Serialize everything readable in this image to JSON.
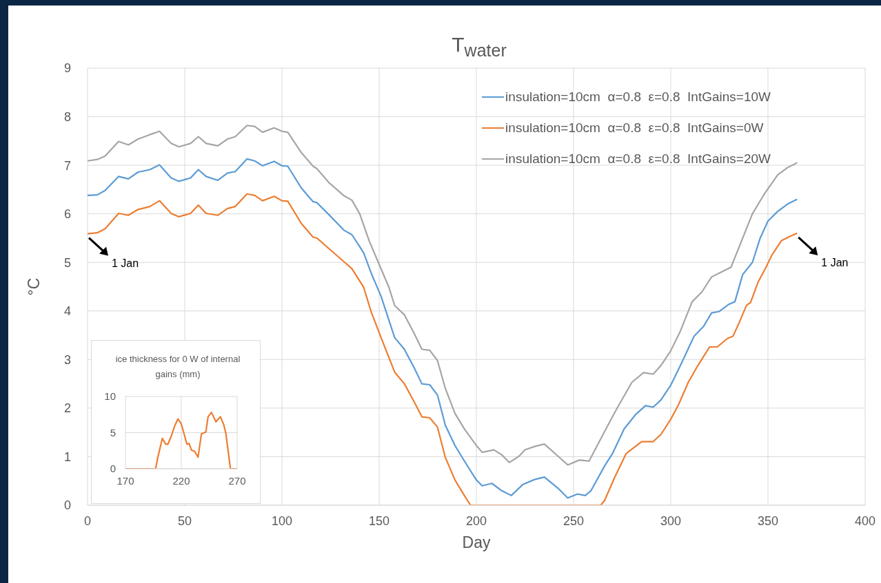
{
  "chart_data": [
    {
      "type": "line",
      "title": "T$_{water}$",
      "xlabel": "Day",
      "ylabel": "°C",
      "xlim": [
        0,
        400
      ],
      "xticks": [
        0,
        50,
        100,
        150,
        200,
        250,
        300,
        350,
        400
      ],
      "ylim": [
        0,
        9
      ],
      "yticks": [
        0,
        1,
        2,
        3,
        4,
        5,
        6,
        7,
        8,
        9
      ],
      "grid": true,
      "legend": "top right",
      "annotations": [
        {
          "text": "1 Jan",
          "x": 0,
          "y": 5.59
        },
        {
          "text": "1 Jan",
          "x": 365,
          "y": 5.6
        }
      ],
      "series": [
        {
          "name": "insulation=10cm  α=0.8  ε=0.8  IntGains=10W",
          "color": "#5b9bd5",
          "x": [
            0,
            5,
            9,
            16,
            21,
            26,
            32,
            37,
            43,
            47,
            53,
            57,
            61,
            67,
            72,
            76,
            82,
            86,
            90,
            96,
            100,
            103,
            110,
            116,
            118,
            124,
            132,
            136,
            142,
            146,
            151,
            158,
            163,
            168,
            172,
            176,
            180,
            184,
            189,
            194,
            200,
            203,
            208,
            213,
            218,
            224,
            230,
            235,
            242,
            247,
            252,
            256,
            259,
            266,
            270,
            276,
            282,
            287,
            291,
            295,
            300,
            305,
            312,
            317,
            321,
            325,
            330,
            333,
            337,
            342,
            346,
            350,
            355,
            360,
            365
          ],
          "values": [
            6.38,
            6.39,
            6.48,
            6.77,
            6.72,
            6.86,
            6.91,
            7.01,
            6.74,
            6.67,
            6.74,
            6.91,
            6.77,
            6.69,
            6.84,
            6.87,
            7.13,
            7.09,
            6.99,
            7.08,
            6.99,
            6.98,
            6.53,
            6.25,
            6.23,
            5.99,
            5.66,
            5.57,
            5.2,
            4.77,
            4.3,
            3.45,
            3.21,
            2.83,
            2.5,
            2.48,
            2.27,
            1.65,
            1.23,
            0.9,
            0.52,
            0.4,
            0.45,
            0.3,
            0.2,
            0.43,
            0.53,
            0.58,
            0.35,
            0.15,
            0.23,
            0.2,
            0.3,
            0.81,
            1.06,
            1.57,
            1.87,
            2.05,
            2.02,
            2.17,
            2.47,
            2.88,
            3.48,
            3.69,
            3.96,
            3.99,
            4.14,
            4.19,
            4.75,
            5.0,
            5.5,
            5.85,
            6.05,
            6.2,
            6.3
          ]
        },
        {
          "name": "insulation=10cm  α=0.8  ε=0.8  IntGains=0W",
          "color": "#ed7d31",
          "x": [
            0,
            5,
            9,
            16,
            21,
            26,
            32,
            37,
            43,
            47,
            53,
            57,
            61,
            67,
            72,
            76,
            82,
            86,
            90,
            96,
            100,
            103,
            110,
            116,
            118,
            124,
            132,
            136,
            142,
            146,
            151,
            158,
            163,
            168,
            172,
            176,
            180,
            184,
            189,
            194,
            197,
            264,
            266,
            271,
            277,
            285,
            291,
            295,
            300,
            304,
            309,
            314,
            320,
            324,
            329,
            332,
            335,
            339,
            341,
            345,
            349,
            352,
            357,
            362,
            365
          ],
          "values": [
            5.59,
            5.61,
            5.69,
            6.01,
            5.97,
            6.09,
            6.15,
            6.27,
            6.01,
            5.94,
            6.01,
            6.18,
            6.01,
            5.97,
            6.11,
            6.15,
            6.41,
            6.38,
            6.27,
            6.36,
            6.27,
            6.26,
            5.8,
            5.52,
            5.5,
            5.29,
            5.01,
            4.87,
            4.49,
            3.97,
            3.45,
            2.74,
            2.5,
            2.13,
            1.82,
            1.8,
            1.61,
            0.99,
            0.52,
            0.19,
            0,
            0,
            0.1,
            0.56,
            1.06,
            1.31,
            1.31,
            1.46,
            1.77,
            2.07,
            2.53,
            2.88,
            3.26,
            3.26,
            3.43,
            3.48,
            3.74,
            4.12,
            4.17,
            4.6,
            4.9,
            5.15,
            5.45,
            5.55,
            5.6
          ]
        },
        {
          "name": "insulation=10cm  α=0.8  ε=0.8  IntGains=20W",
          "color": "#a5a5a5",
          "x": [
            0,
            5,
            9,
            16,
            21,
            26,
            32,
            37,
            43,
            47,
            53,
            57,
            61,
            67,
            72,
            76,
            82,
            86,
            90,
            96,
            100,
            103,
            110,
            116,
            118,
            124,
            132,
            136,
            140,
            145,
            150,
            155,
            158,
            163,
            168,
            172,
            176,
            180,
            184,
            189,
            194,
            200,
            203,
            209,
            213,
            217,
            222,
            225,
            230,
            235,
            242,
            247,
            253,
            258,
            266,
            272,
            280,
            286,
            291,
            295,
            300,
            305,
            311,
            316,
            321,
            326,
            331,
            334,
            338,
            342,
            348,
            355,
            360,
            365
          ],
          "values": [
            7.09,
            7.12,
            7.19,
            7.49,
            7.42,
            7.54,
            7.63,
            7.7,
            7.45,
            7.38,
            7.45,
            7.59,
            7.45,
            7.4,
            7.54,
            7.59,
            7.82,
            7.8,
            7.68,
            7.77,
            7.7,
            7.68,
            7.26,
            6.98,
            6.93,
            6.65,
            6.37,
            6.28,
            6.0,
            5.43,
            4.96,
            4.49,
            4.11,
            3.92,
            3.54,
            3.21,
            3.19,
            2.98,
            2.41,
            1.89,
            1.56,
            1.23,
            1.09,
            1.14,
            1.04,
            0.88,
            1.01,
            1.14,
            1.21,
            1.26,
            1.01,
            0.83,
            0.93,
            0.91,
            1.52,
            1.97,
            2.53,
            2.73,
            2.7,
            2.88,
            3.18,
            3.59,
            4.19,
            4.39,
            4.7,
            4.8,
            4.9,
            5.2,
            5.6,
            6.0,
            6.4,
            6.8,
            6.95,
            7.05
          ]
        }
      ]
    },
    {
      "type": "line",
      "title": "ice thickness for 0 W of internal gains (mm)",
      "xlim": [
        170,
        270
      ],
      "xticks": [
        170,
        220,
        270
      ],
      "ylim": [
        0,
        10
      ],
      "yticks": [
        0,
        5,
        10
      ],
      "grid": true,
      "series": [
        {
          "color": "#ed7d31",
          "x": [
            170,
            197,
            199,
            203,
            206,
            208,
            211,
            214,
            217,
            220,
            222,
            225,
            227,
            229,
            232,
            235,
            238,
            242,
            244,
            247,
            251,
            255,
            258,
            260,
            264,
            270
          ],
          "values": [
            0,
            0,
            1.6,
            4.2,
            3.4,
            3.4,
            4.5,
            5.9,
            6.9,
            6.2,
            5.1,
            3.4,
            3.5,
            2.6,
            2.4,
            1.6,
            4.8,
            5.1,
            7.2,
            7.8,
            6.5,
            7.2,
            6.1,
            4.8,
            0,
            0
          ]
        }
      ]
    }
  ]
}
